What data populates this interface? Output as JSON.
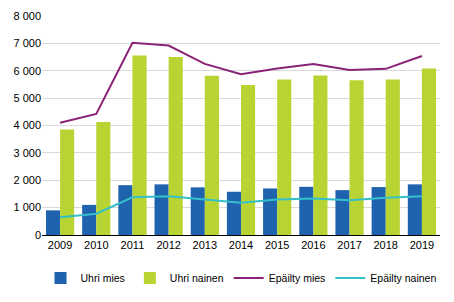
{
  "chart_data": {
    "type": "bar",
    "categories": [
      "2009",
      "2010",
      "2011",
      "2012",
      "2013",
      "2014",
      "2015",
      "2016",
      "2017",
      "2018",
      "2019"
    ],
    "series": [
      {
        "name": "Uhri mies",
        "type": "bar",
        "color": "#1f63ae",
        "values": [
          900,
          1100,
          1820,
          1850,
          1740,
          1580,
          1700,
          1760,
          1640,
          1750,
          1850
        ]
      },
      {
        "name": "Uhri nainen",
        "type": "bar",
        "color": "#b7d433",
        "values": [
          3850,
          4130,
          6560,
          6500,
          5820,
          5480,
          5680,
          5830,
          5650,
          5680,
          6080
        ]
      },
      {
        "name": "Epäilty mies",
        "type": "line",
        "color": "#8a2277",
        "values": [
          4100,
          4420,
          7020,
          6920,
          6250,
          5870,
          6080,
          6250,
          6030,
          6070,
          6540
        ]
      },
      {
        "name": "Epäilty nainen",
        "type": "line",
        "color": "#35c0c9",
        "values": [
          650,
          780,
          1380,
          1420,
          1300,
          1180,
          1300,
          1330,
          1270,
          1360,
          1420
        ]
      }
    ],
    "ylim": [
      0,
      8000
    ],
    "yticks": [
      0,
      {
        "value": 1000,
        "label": "1 000"
      },
      {
        "value": 2000,
        "label": "2 000"
      },
      {
        "value": 3000,
        "label": "3 000"
      },
      {
        "value": 4000,
        "label": "4 000"
      },
      {
        "value": 5000,
        "label": "5 000"
      },
      {
        "value": 6000,
        "label": "6 000"
      },
      {
        "value": 7000,
        "label": "7 000"
      },
      {
        "value": 8000,
        "label": "8 000"
      }
    ],
    "grid": true,
    "legend": "bottom"
  }
}
